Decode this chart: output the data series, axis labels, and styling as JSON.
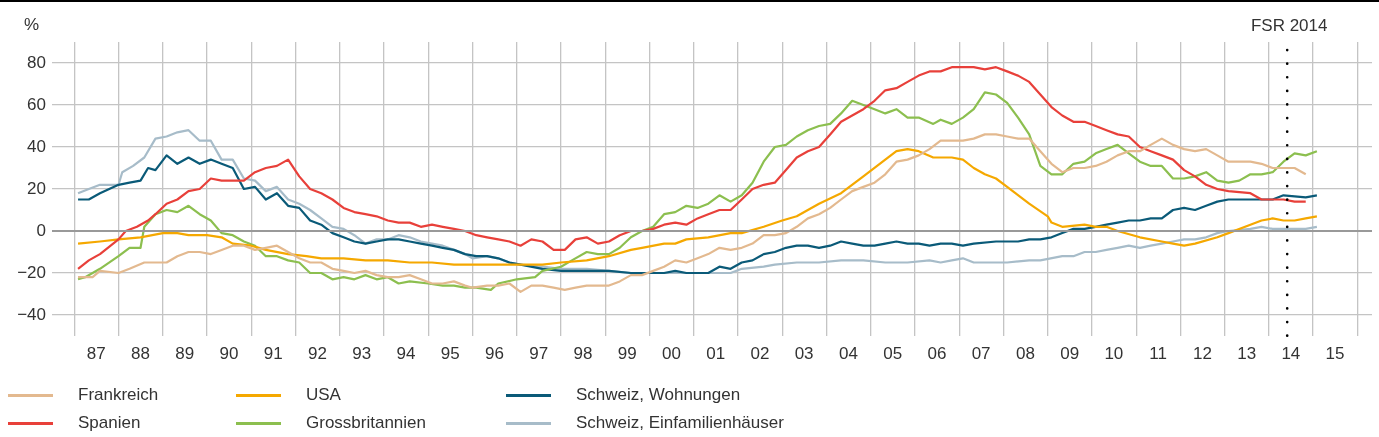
{
  "chart_data": {
    "type": "line",
    "ylabel": "%",
    "legend": "bottom",
    "grid": true,
    "marker": "none",
    "line_style": "solid",
    "xlim": [
      "1986-07",
      "2016-05"
    ],
    "xticks": [
      {
        "value": "1987",
        "label": null
      },
      {
        "value": "1987-07",
        "label": "87"
      },
      {
        "value": "1988",
        "label": null
      },
      {
        "value": "1988-07",
        "label": "88"
      },
      {
        "value": "1989",
        "label": null
      },
      {
        "value": "1989-07",
        "label": "89"
      },
      {
        "value": "1990",
        "label": null
      },
      {
        "value": "1990-07",
        "label": "90"
      },
      {
        "value": "1991",
        "label": null
      },
      {
        "value": "1991-07",
        "label": "91"
      },
      {
        "value": "1992",
        "label": null
      },
      {
        "value": "1992-07",
        "label": "92"
      },
      {
        "value": "1993",
        "label": null
      },
      {
        "value": "1993-07",
        "label": "93"
      },
      {
        "value": "1994",
        "label": null
      },
      {
        "value": "1994-07",
        "label": "94"
      },
      {
        "value": "1995",
        "label": null
      },
      {
        "value": "1995-07",
        "label": "95"
      },
      {
        "value": "1996",
        "label": null
      },
      {
        "value": "1996-07",
        "label": "96"
      },
      {
        "value": "1997",
        "label": null
      },
      {
        "value": "1997-07",
        "label": "97"
      },
      {
        "value": "1998",
        "label": null
      },
      {
        "value": "1998-07",
        "label": "98"
      },
      {
        "value": "1999",
        "label": null
      },
      {
        "value": "1999-07",
        "label": "99"
      },
      {
        "value": "2000",
        "label": null
      },
      {
        "value": "2000-07",
        "label": "00"
      },
      {
        "value": "2001",
        "label": null
      },
      {
        "value": "2001-07",
        "label": "01"
      },
      {
        "value": "2002",
        "label": null
      },
      {
        "value": "2002-07",
        "label": "02"
      },
      {
        "value": "2003",
        "label": null
      },
      {
        "value": "2003-07",
        "label": "03"
      },
      {
        "value": "2004",
        "label": null
      },
      {
        "value": "2004-07",
        "label": "04"
      },
      {
        "value": "2005",
        "label": null
      },
      {
        "value": "2005-07",
        "label": "05"
      },
      {
        "value": "2006",
        "label": null
      },
      {
        "value": "2006-07",
        "label": "06"
      },
      {
        "value": "2007",
        "label": null
      },
      {
        "value": "2007-07",
        "label": "07"
      },
      {
        "value": "2008",
        "label": null
      },
      {
        "value": "2008-07",
        "label": "08"
      },
      {
        "value": "2009",
        "label": null
      },
      {
        "value": "2009-07",
        "label": "09"
      },
      {
        "value": "2010",
        "label": null
      },
      {
        "value": "2010-07",
        "label": "10"
      },
      {
        "value": "2011",
        "label": null
      },
      {
        "value": "2011-07",
        "label": "11"
      },
      {
        "value": "2012",
        "label": null
      },
      {
        "value": "2012-07",
        "label": "12"
      },
      {
        "value": "2013",
        "label": null
      },
      {
        "value": "2013-07",
        "label": "13"
      },
      {
        "value": "2014",
        "label": null
      },
      {
        "value": "2014-07",
        "label": "14"
      },
      {
        "value": "2015",
        "label": null
      },
      {
        "value": "2015-07",
        "label": "15"
      },
      {
        "value": "2016",
        "label": null
      }
    ],
    "ylim": [
      -50,
      90
    ],
    "yticks": [
      -40,
      -20,
      0,
      20,
      40,
      60,
      80
    ],
    "ref_lines": [
      {
        "axis": "x",
        "value": "2014-06",
        "label": "FSR 2014",
        "color": "#000000",
        "line_style": "dotted"
      },
      {
        "axis": "y",
        "value": 0,
        "color": "#999999",
        "line_style": "solid"
      }
    ],
    "series": [
      {
        "name": "Frankreich",
        "color": "#e3b98f",
        "x": [
          "1987-02",
          "1987-06",
          "1987-08",
          "1988-01",
          "1988-04",
          "1988-08",
          "1988-11",
          "1989-02",
          "1989-05",
          "1989-08",
          "1989-11",
          "1990-02",
          "1990-05",
          "1990-08",
          "1990-11",
          "1991-02",
          "1991-05",
          "1991-08",
          "1991-11",
          "1992-02",
          "1992-05",
          "1992-08",
          "1992-11",
          "1993-02",
          "1993-05",
          "1993-08",
          "1993-11",
          "1994-02",
          "1994-05",
          "1994-08",
          "1994-11",
          "1995-02",
          "1995-05",
          "1995-08",
          "1995-11",
          "1996-01",
          "1996-05",
          "1996-08",
          "1996-11",
          "1997-02",
          "1997-05",
          "1997-08",
          "1997-11",
          "1998-02",
          "1998-05",
          "1998-08",
          "1998-11",
          "1999-02",
          "1999-05",
          "1999-08",
          "1999-11",
          "2000-02",
          "2000-05",
          "2000-08",
          "2000-11",
          "2001-02",
          "2001-05",
          "2001-08",
          "2001-11",
          "2002-02",
          "2002-05",
          "2002-08",
          "2002-11",
          "2003-02",
          "2003-05",
          "2003-08",
          "2003-11",
          "2004-02",
          "2004-05",
          "2004-08",
          "2004-11",
          "2005-02",
          "2005-05",
          "2005-08",
          "2005-11",
          "2006-02",
          "2006-05",
          "2006-08",
          "2006-11",
          "2007-02",
          "2007-05",
          "2007-08",
          "2007-11",
          "2008-02",
          "2008-05",
          "2008-08",
          "2008-11",
          "2009-02",
          "2009-05",
          "2009-08",
          "2009-11",
          "2010-02",
          "2010-05",
          "2010-08",
          "2010-11",
          "2011-02",
          "2011-05",
          "2011-08",
          "2011-11",
          "2012-02",
          "2012-05",
          "2012-08",
          "2012-11",
          "2013-02",
          "2013-05",
          "2013-08",
          "2013-11",
          "2014-02",
          "2014-05",
          "2014-08",
          "2014-11"
        ],
        "values": [
          -22,
          -22,
          -19,
          -20,
          -18,
          -15,
          -15,
          -15,
          -12,
          -10,
          -10,
          -11,
          -9,
          -7,
          -7,
          -9,
          -8,
          -7,
          -10,
          -13,
          -15,
          -15,
          -18,
          -19,
          -20,
          -19,
          -21,
          -22,
          -22,
          -21,
          -23,
          -25,
          -25,
          -24,
          -26,
          -27,
          -26,
          -26,
          -25,
          -29,
          -26,
          -26,
          -27,
          -28,
          -27,
          -26,
          -26,
          -26,
          -24,
          -21,
          -21,
          -19,
          -17,
          -14,
          -15,
          -13,
          -11,
          -8,
          -9,
          -8,
          -6,
          -2,
          -2,
          -1,
          2,
          6,
          8,
          11,
          15,
          19,
          21,
          23,
          27,
          33,
          34,
          36,
          39,
          43,
          43,
          43,
          44,
          46,
          46,
          45,
          44,
          44,
          38,
          32,
          28,
          30,
          30,
          31,
          33,
          36,
          38,
          38,
          41,
          44,
          41,
          39,
          38,
          39,
          36,
          33,
          33,
          33,
          32,
          30,
          30,
          30,
          27
        ]
      },
      {
        "name": "Spanien",
        "color": "#e8403a",
        "x": [
          "1987-02",
          "1987-05",
          "1987-08",
          "1988-01",
          "1988-03",
          "1988-06",
          "1988-09",
          "1988-11",
          "1989-02",
          "1989-05",
          "1989-08",
          "1989-11",
          "1990-02",
          "1990-05",
          "1990-11",
          "1991-02",
          "1991-05",
          "1991-08",
          "1991-11",
          "1992-02",
          "1992-05",
          "1992-08",
          "1992-11",
          "1993-02",
          "1993-05",
          "1993-08",
          "1993-11",
          "1994-02",
          "1994-05",
          "1994-08",
          "1994-11",
          "1995-02",
          "1995-05",
          "1995-08",
          "1995-11",
          "1996-02",
          "1996-05",
          "1996-08",
          "1996-11",
          "1997-02",
          "1997-05",
          "1997-08",
          "1997-11",
          "1998-02",
          "1998-05",
          "1998-08",
          "1998-11",
          "1999-02",
          "1999-05",
          "1999-08",
          "1999-11",
          "2000-02",
          "2000-05",
          "2000-08",
          "2000-11",
          "2001-02",
          "2001-05",
          "2001-08",
          "2001-11",
          "2002-02",
          "2002-05",
          "2002-08",
          "2002-11",
          "2003-02",
          "2003-05",
          "2003-08",
          "2003-11",
          "2004-02",
          "2004-05",
          "2004-08",
          "2004-11",
          "2005-02",
          "2005-05",
          "2005-08",
          "2005-11",
          "2006-02",
          "2006-05",
          "2006-08",
          "2006-11",
          "2007-02",
          "2007-05",
          "2007-08",
          "2007-11",
          "2008-02",
          "2008-05",
          "2008-08",
          "2008-11",
          "2009-02",
          "2009-05",
          "2009-08",
          "2009-11",
          "2010-02",
          "2010-05",
          "2010-08",
          "2010-11",
          "2011-02",
          "2011-05",
          "2011-08",
          "2011-11",
          "2012-02",
          "2012-05",
          "2012-08",
          "2012-11",
          "2013-02",
          "2013-08",
          "2013-11",
          "2014-05",
          "2014-08",
          "2014-11"
        ],
        "values": [
          -18,
          -14,
          -11,
          -4,
          0,
          2,
          5,
          8,
          13,
          15,
          19,
          20,
          25,
          24,
          24,
          28,
          30,
          31,
          34,
          26,
          20,
          18,
          15,
          11,
          9,
          8,
          7,
          5,
          4,
          4,
          2,
          3,
          2,
          1,
          0,
          -2,
          -3,
          -4,
          -5,
          -7,
          -4,
          -5,
          -9,
          -9,
          -4,
          -3,
          -6,
          -5,
          -2,
          0,
          0,
          1,
          3,
          4,
          3,
          6,
          8,
          10,
          10,
          15,
          20,
          22,
          23,
          29,
          35,
          38,
          40,
          46,
          52,
          55,
          58,
          62,
          67,
          68,
          71,
          74,
          76,
          76,
          78,
          78,
          78,
          77,
          78,
          76,
          74,
          71,
          65,
          59,
          55,
          52,
          52,
          50,
          48,
          46,
          45,
          40,
          38,
          36,
          34,
          29,
          26,
          22,
          20,
          19,
          18,
          15,
          15,
          14,
          14
        ]
      },
      {
        "name": "USA",
        "color": "#f5a800",
        "x": [
          "1987-02",
          "1987-08",
          "1988-01",
          "1988-07",
          "1989-01",
          "1989-05",
          "1989-08",
          "1990-01",
          "1990-05",
          "1990-08",
          "1991-01",
          "1991-05",
          "1991-11",
          "1992-04",
          "1992-08",
          "1993-02",
          "1993-08",
          "1994-02",
          "1994-08",
          "1995-02",
          "1995-08",
          "1996-01",
          "1996-06",
          "1997-01",
          "1997-08",
          "1998-01",
          "1998-08",
          "1999-02",
          "1999-08",
          "1999-11",
          "2000-05",
          "2000-08",
          "2000-11",
          "2001-05",
          "2001-11",
          "2002-02",
          "2002-08",
          "2003-01",
          "2003-05",
          "2003-11",
          "2004-05",
          "2004-11",
          "2005-05",
          "2005-08",
          "2005-11",
          "2006-02",
          "2006-06",
          "2006-11",
          "2007-02",
          "2007-05",
          "2007-08",
          "2007-11",
          "2008-02",
          "2008-08",
          "2009-01",
          "2009-02",
          "2009-05",
          "2009-11",
          "2010-02",
          "2010-05",
          "2010-08",
          "2011-02",
          "2011-08",
          "2011-11",
          "2012-02",
          "2012-05",
          "2012-11",
          "2013-02",
          "2013-08",
          "2013-11",
          "2014-02",
          "2014-05",
          "2014-08",
          "2014-11",
          "2015-02"
        ],
        "values": [
          -6,
          -5,
          -4,
          -3,
          -1,
          -1,
          -2,
          -2,
          -3,
          -6,
          -7,
          -9,
          -11,
          -12,
          -13,
          -13,
          -14,
          -14,
          -15,
          -15,
          -16,
          -16,
          -16,
          -16,
          -16,
          -15,
          -14,
          -12,
          -9,
          -8,
          -6,
          -6,
          -4,
          -3,
          -1,
          -1,
          2,
          5,
          7,
          13,
          18,
          26,
          34,
          38,
          39,
          38,
          35,
          35,
          34,
          30,
          27,
          25,
          21,
          13,
          7,
          4,
          2,
          3,
          2,
          2,
          0,
          -3,
          -5,
          -6,
          -7,
          -6,
          -3,
          -1,
          3,
          5,
          6,
          5,
          5,
          6,
          7
        ]
      },
      {
        "name": "Grossbritannien",
        "color": "#8cbf4f",
        "x": [
          "1987-02",
          "1987-04",
          "1987-08",
          "1988-01",
          "1988-04",
          "1988-07",
          "1988-08",
          "1988-11",
          "1989-02",
          "1989-05",
          "1989-08",
          "1989-11",
          "1990-02",
          "1990-05",
          "1990-08",
          "1990-11",
          "1991-02",
          "1991-05",
          "1991-08",
          "1991-11",
          "1992-02",
          "1992-05",
          "1992-08",
          "1992-11",
          "1993-02",
          "1993-05",
          "1993-08",
          "1993-11",
          "1994-02",
          "1994-05",
          "1994-08",
          "1995-01",
          "1995-05",
          "1995-08",
          "1995-11",
          "1996-02",
          "1996-06",
          "1996-08",
          "1997-01",
          "1997-06",
          "1997-08",
          "1998-01",
          "1998-04",
          "1998-08",
          "1998-11",
          "1999-02",
          "1999-05",
          "1999-08",
          "1999-11",
          "2000-02",
          "2000-05",
          "2000-08",
          "2000-11",
          "2001-02",
          "2001-05",
          "2001-08",
          "2001-11",
          "2002-02",
          "2002-05",
          "2002-08",
          "2002-11",
          "2003-02",
          "2003-05",
          "2003-08",
          "2003-11",
          "2004-02",
          "2004-05",
          "2004-08",
          "2004-11",
          "2005-02",
          "2005-05",
          "2005-08",
          "2005-11",
          "2006-02",
          "2006-06",
          "2006-08",
          "2006-11",
          "2007-02",
          "2007-05",
          "2007-08",
          "2007-11",
          "2008-02",
          "2008-05",
          "2008-08",
          "2008-11",
          "2009-02",
          "2009-05",
          "2009-08",
          "2009-11",
          "2010-02",
          "2010-05",
          "2010-08",
          "2010-11",
          "2011-02",
          "2011-05",
          "2011-08",
          "2011-11",
          "2012-02",
          "2012-05",
          "2012-08",
          "2012-11",
          "2013-02",
          "2013-05",
          "2013-08",
          "2013-11",
          "2014-02",
          "2014-05",
          "2014-08",
          "2014-11",
          "2015-02"
        ],
        "values": [
          -23,
          -22,
          -18,
          -12,
          -8,
          -8,
          2,
          8,
          10,
          9,
          12,
          8,
          5,
          -1,
          -2,
          -5,
          -7,
          -12,
          -12,
          -14,
          -15,
          -20,
          -20,
          -23,
          -22,
          -23,
          -21,
          -23,
          -22,
          -25,
          -24,
          -25,
          -26,
          -26,
          -27,
          -27,
          -28,
          -25,
          -23,
          -22,
          -19,
          -17,
          -14,
          -10,
          -11,
          -11,
          -8,
          -3,
          0,
          2,
          8,
          9,
          12,
          11,
          13,
          17,
          14,
          17,
          23,
          33,
          40,
          41,
          45,
          48,
          50,
          51,
          56,
          62,
          60,
          58,
          56,
          58,
          54,
          54,
          51,
          53,
          51,
          54,
          58,
          66,
          65,
          61,
          54,
          46,
          31,
          27,
          27,
          32,
          33,
          37,
          39,
          41,
          37,
          33,
          31,
          31,
          25,
          25,
          26,
          28,
          24,
          23,
          24,
          27,
          27,
          28,
          33,
          37,
          36,
          38
        ]
      },
      {
        "name": "Schweiz, Wohnungen",
        "color": "#0a5a78",
        "x": [
          "1987-02",
          "1987-05",
          "1987-08",
          "1988-01",
          "1988-04",
          "1988-07",
          "1988-09",
          "1988-11",
          "1989-02",
          "1989-05",
          "1989-08",
          "1989-11",
          "1990-02",
          "1990-05",
          "1990-08",
          "1990-11",
          "1991-02",
          "1991-05",
          "1991-08",
          "1991-11",
          "1992-02",
          "1992-05",
          "1992-08",
          "1992-11",
          "1993-02",
          "1993-05",
          "1993-08",
          "1993-11",
          "1994-02",
          "1994-05",
          "1994-08",
          "1994-11",
          "1995-02",
          "1995-05",
          "1995-08",
          "1995-11",
          "1996-02",
          "1996-05",
          "1996-08",
          "1996-11",
          "1997-02",
          "1997-08",
          "1998-01",
          "1998-05",
          "1998-08",
          "1999-02",
          "1999-08",
          "2000-02",
          "2000-05",
          "2000-08",
          "2000-11",
          "2001-02",
          "2001-05",
          "2001-08",
          "2001-11",
          "2002-02",
          "2002-05",
          "2002-08",
          "2002-11",
          "2003-02",
          "2003-05",
          "2003-08",
          "2003-11",
          "2004-02",
          "2004-05",
          "2004-08",
          "2004-11",
          "2005-02",
          "2005-05",
          "2005-08",
          "2005-11",
          "2006-02",
          "2006-05",
          "2006-08",
          "2006-11",
          "2007-02",
          "2007-05",
          "2007-11",
          "2008-05",
          "2008-08",
          "2008-11",
          "2009-02",
          "2009-05",
          "2009-08",
          "2009-11",
          "2010-02",
          "2010-05",
          "2010-08",
          "2010-11",
          "2011-02",
          "2011-05",
          "2011-08",
          "2011-11",
          "2012-02",
          "2012-05",
          "2012-08",
          "2012-11",
          "2013-02",
          "2013-08",
          "2014-02",
          "2014-05",
          "2014-11",
          "2015-02"
        ],
        "values": [
          15,
          15,
          18,
          22,
          23,
          24,
          30,
          29,
          36,
          32,
          35,
          32,
          34,
          32,
          30,
          20,
          21,
          15,
          18,
          12,
          11,
          5,
          3,
          -1,
          -3,
          -5,
          -6,
          -5,
          -4,
          -4,
          -5,
          -6,
          -7,
          -8,
          -9,
          -11,
          -12,
          -12,
          -13,
          -15,
          -16,
          -18,
          -19,
          -19,
          -19,
          -19,
          -20,
          -20,
          -20,
          -19,
          -20,
          -20,
          -20,
          -17,
          -18,
          -15,
          -14,
          -11,
          -10,
          -8,
          -7,
          -7,
          -8,
          -7,
          -5,
          -6,
          -7,
          -7,
          -6,
          -5,
          -6,
          -6,
          -7,
          -6,
          -6,
          -7,
          -6,
          -5,
          -5,
          -4,
          -4,
          -3,
          -1,
          1,
          1,
          2,
          3,
          4,
          5,
          5,
          6,
          6,
          10,
          11,
          10,
          12,
          14,
          15,
          15,
          15,
          17,
          16,
          17
        ]
      },
      {
        "name": "Schweiz, Einfamilienhäuser",
        "color": "#a7bcc9",
        "x": [
          "1987-02",
          "1987-05",
          "1987-08",
          "1988-01",
          "1988-02",
          "1988-05",
          "1988-08",
          "1988-11",
          "1989-02",
          "1989-05",
          "1989-08",
          "1989-11",
          "1990-02",
          "1990-05",
          "1990-08",
          "1990-11",
          "1991-02",
          "1991-05",
          "1991-08",
          "1991-11",
          "1992-02",
          "1992-05",
          "1992-08",
          "1992-11",
          "1993-02",
          "1993-05",
          "1993-08",
          "1993-11",
          "1994-02",
          "1994-05",
          "1994-08",
          "1994-11",
          "1995-02",
          "1995-05",
          "1995-08",
          "1995-11",
          "1996-01",
          "1996-05",
          "1996-08",
          "1996-11",
          "1997-02",
          "1997-08",
          "1998-01",
          "1998-08",
          "1999-02",
          "1999-08",
          "2000-02",
          "2000-08",
          "2000-11",
          "2001-05",
          "2001-11",
          "2002-02",
          "2002-08",
          "2002-11",
          "2003-05",
          "2003-11",
          "2004-05",
          "2004-11",
          "2005-05",
          "2005-11",
          "2006-05",
          "2006-08",
          "2006-11",
          "2007-02",
          "2007-05",
          "2007-11",
          "2008-02",
          "2008-08",
          "2008-11",
          "2009-05",
          "2009-08",
          "2009-11",
          "2010-02",
          "2010-05",
          "2010-08",
          "2010-11",
          "2011-02",
          "2011-05",
          "2011-08",
          "2011-11",
          "2012-02",
          "2012-05",
          "2012-08",
          "2012-11",
          "2013-02",
          "2013-08",
          "2013-11",
          "2014-02",
          "2014-05",
          "2014-11",
          "2015-02"
        ],
        "values": [
          18,
          20,
          22,
          22,
          28,
          31,
          35,
          44,
          45,
          47,
          48,
          43,
          43,
          34,
          34,
          25,
          24,
          19,
          21,
          15,
          13,
          10,
          6,
          2,
          1,
          -2,
          -6,
          -4,
          -4,
          -2,
          -3,
          -5,
          -6,
          -7,
          -9,
          -11,
          -13,
          -12,
          -13,
          -15,
          -16,
          -17,
          -18,
          -18,
          -19,
          -20,
          -20,
          -20,
          -20,
          -20,
          -20,
          -18,
          -17,
          -16,
          -15,
          -15,
          -14,
          -14,
          -15,
          -15,
          -14,
          -15,
          -14,
          -13,
          -15,
          -15,
          -15,
          -14,
          -14,
          -12,
          -12,
          -10,
          -10,
          -9,
          -8,
          -7,
          -8,
          -7,
          -6,
          -5,
          -4,
          -4,
          -3,
          -1,
          0,
          1,
          2,
          1,
          1,
          1,
          2
        ]
      }
    ]
  }
}
